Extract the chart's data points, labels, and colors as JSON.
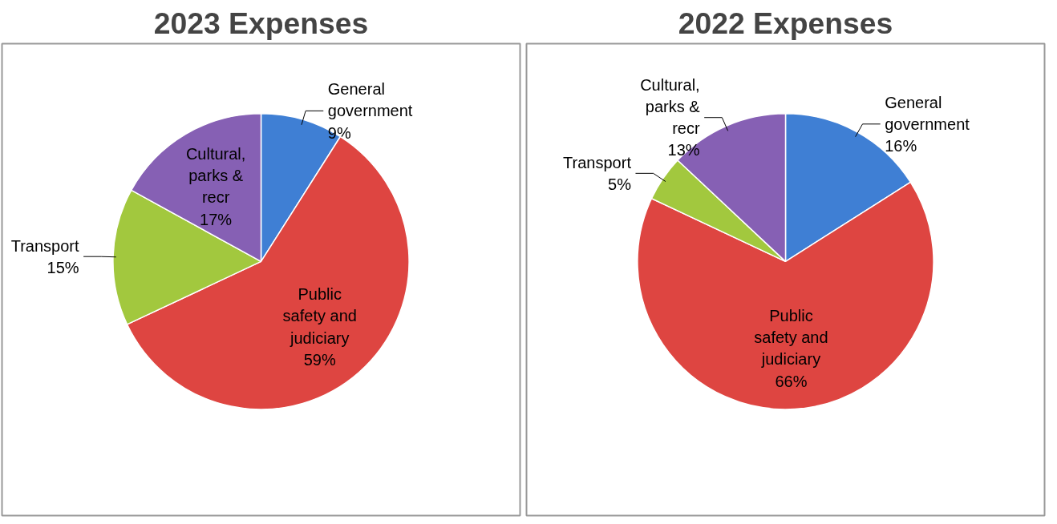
{
  "chart_data": [
    {
      "type": "pie",
      "title": "2023 Expenses",
      "categories": [
        "General government",
        "Public safety and judiciary",
        "Transport",
        "Cultural, parks & recr"
      ],
      "values": [
        9,
        59,
        15,
        17
      ],
      "value_labels": [
        "9%",
        "59%",
        "15%",
        "17%"
      ],
      "colors": [
        "#3f7fd4",
        "#de4541",
        "#a2c83e",
        "#8660b4"
      ],
      "legend": false
    },
    {
      "type": "pie",
      "title": "2022 Expenses",
      "categories": [
        "General government",
        "Public safety and judiciary",
        "Transport",
        "Cultural, parks & recr"
      ],
      "values": [
        16,
        66,
        5,
        13
      ],
      "value_labels": [
        "16%",
        "66%",
        "5%",
        "13%"
      ],
      "colors": [
        "#3f7fd4",
        "#de4541",
        "#a2c83e",
        "#8660b4"
      ],
      "legend": false
    }
  ]
}
